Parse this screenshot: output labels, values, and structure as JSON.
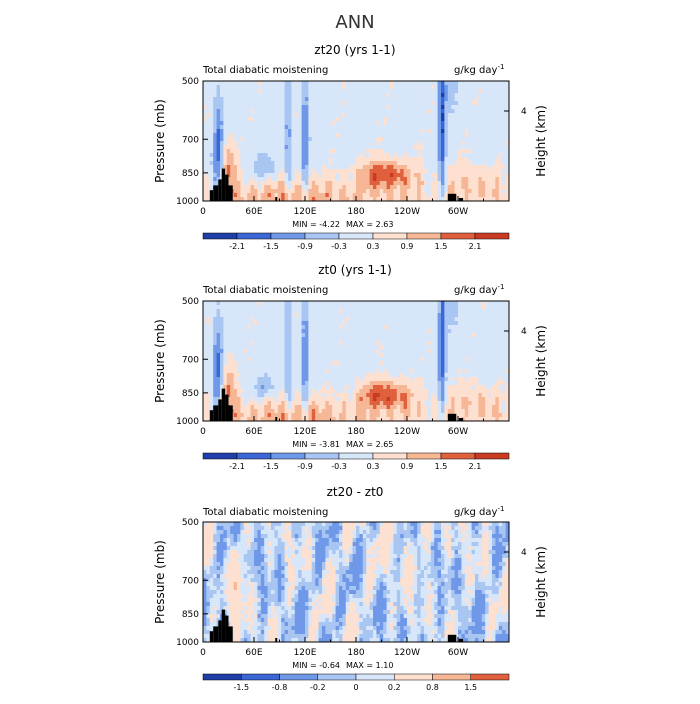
{
  "page_title": "ANN",
  "panels": [
    {
      "title": "zt20 (yrs 1-1)",
      "left_label": "Total diabatic moistening",
      "units": "g/kg day",
      "units_exp": "-1",
      "min_label": "MIN =",
      "min_value": "-4.22",
      "max_label": "MAX =",
      "max_value": "2.63",
      "colorbar_ticks": [
        "-2.1",
        "-1.5",
        "-0.9",
        "-0.3",
        "0.3",
        "0.9",
        "1.5",
        "2.1"
      ]
    },
    {
      "title": "zt0 (yrs 1-1)",
      "left_label": "Total diabatic moistening",
      "units": "g/kg day",
      "units_exp": "-1",
      "min_label": "MIN =",
      "min_value": "-3.81",
      "max_label": "MAX =",
      "max_value": "2.65",
      "colorbar_ticks": [
        "-2.1",
        "-1.5",
        "-0.9",
        "-0.3",
        "0.3",
        "0.9",
        "1.5",
        "2.1"
      ]
    },
    {
      "title": "zt20 - zt0",
      "left_label": "Total diabatic moistening",
      "units": "g/kg day",
      "units_exp": "-1",
      "min_label": "MIN =",
      "min_value": "-0.64",
      "max_label": "MAX =",
      "max_value": "1.10",
      "colorbar_ticks": [
        "-1.5",
        "-0.8",
        "-0.2",
        "0",
        "0.2",
        "0.8",
        "1.5"
      ]
    }
  ],
  "axes": {
    "ylabel": "Pressure (mb)",
    "y2label": "Height (km)",
    "y_ticks": [
      "500",
      "700",
      "850",
      "1000"
    ],
    "y_tick_values": [
      500,
      700,
      850,
      1000
    ],
    "y2_ticks": [
      "4"
    ],
    "x_ticks": [
      "0",
      "60E",
      "120E",
      "180",
      "120W",
      "60W"
    ],
    "x_tick_values": [
      0,
      60,
      120,
      180,
      240,
      300
    ],
    "xlim": [
      0,
      360
    ],
    "ylim": [
      1000,
      500
    ]
  },
  "colors": {
    "palette": [
      "#08186a",
      "#1f3fa8",
      "#3a66d6",
      "#6f98e8",
      "#a9c6f2",
      "#d7e6f8",
      "#fde0cf",
      "#f6b796",
      "#ee8a62",
      "#e0603e",
      "#c93a22",
      "#8e1212"
    ]
  },
  "chart_data": [
    {
      "type": "heatmap",
      "title": "zt20 (yrs 1-1)",
      "xlabel": "",
      "ylabel": "Pressure (mb)",
      "x_ticks": [
        "0",
        "60E",
        "120E",
        "180",
        "120W",
        "60W"
      ],
      "y_ticks": [
        500,
        700,
        850,
        1000
      ],
      "xlim": [
        0,
        360
      ],
      "ylim": [
        1000,
        500
      ],
      "min": -4.22,
      "max": 2.63,
      "levels": [
        -2.1,
        -1.5,
        -0.9,
        -0.3,
        0.3,
        0.9,
        1.5,
        2.1
      ],
      "features": [
        {
          "kind": "negative",
          "lon": 20,
          "p": 750,
          "value": -1.8
        },
        {
          "kind": "negative",
          "lon": 100,
          "p": 700,
          "value": -1.2
        },
        {
          "kind": "negative",
          "lon": 120,
          "p": 650,
          "value": -1.5
        },
        {
          "kind": "negative",
          "lon": 280,
          "p": 650,
          "value": -2.1
        },
        {
          "kind": "positive",
          "lon": 30,
          "p": 850,
          "value": 1.5
        },
        {
          "kind": "positive",
          "lon": 215,
          "p": 880,
          "value": 1.8
        },
        {
          "kind": "positive",
          "lon": 110,
          "p": 920,
          "value": 0.9
        }
      ]
    },
    {
      "type": "heatmap",
      "title": "zt0 (yrs 1-1)",
      "xlabel": "",
      "ylabel": "Pressure (mb)",
      "x_ticks": [
        "0",
        "60E",
        "120E",
        "180",
        "120W",
        "60W"
      ],
      "y_ticks": [
        500,
        700,
        850,
        1000
      ],
      "xlim": [
        0,
        360
      ],
      "ylim": [
        1000,
        500
      ],
      "min": -3.81,
      "max": 2.65,
      "levels": [
        -2.1,
        -1.5,
        -0.9,
        -0.3,
        0.3,
        0.9,
        1.5,
        2.1
      ],
      "features": [
        {
          "kind": "negative",
          "lon": 20,
          "p": 750,
          "value": -1.6
        },
        {
          "kind": "negative",
          "lon": 100,
          "p": 700,
          "value": -1.1
        },
        {
          "kind": "negative",
          "lon": 120,
          "p": 650,
          "value": -1.4
        },
        {
          "kind": "negative",
          "lon": 280,
          "p": 650,
          "value": -2.0
        },
        {
          "kind": "positive",
          "lon": 30,
          "p": 850,
          "value": 1.4
        },
        {
          "kind": "positive",
          "lon": 215,
          "p": 880,
          "value": 1.8
        },
        {
          "kind": "positive",
          "lon": 110,
          "p": 920,
          "value": 0.9
        }
      ]
    },
    {
      "type": "heatmap",
      "title": "zt20 - zt0",
      "xlabel": "",
      "ylabel": "Pressure (mb)",
      "x_ticks": [
        "0",
        "60E",
        "120E",
        "180",
        "120W",
        "60W"
      ],
      "y_ticks": [
        500,
        700,
        850,
        1000
      ],
      "xlim": [
        0,
        360
      ],
      "ylim": [
        1000,
        500
      ],
      "min": -0.64,
      "max": 1.1,
      "levels": [
        -1.5,
        -0.8,
        -0.2,
        0,
        0.2,
        0.8,
        1.5
      ],
      "features": [
        {
          "kind": "positive",
          "lon": 40,
          "p": 800,
          "value": 0.8
        },
        {
          "kind": "negative",
          "lon": 20,
          "p": 600,
          "value": -0.3
        },
        {
          "kind": "positive",
          "lon": 240,
          "p": 600,
          "value": 0.3
        },
        {
          "kind": "negative",
          "lon": 160,
          "p": 750,
          "value": -0.3
        }
      ]
    }
  ]
}
